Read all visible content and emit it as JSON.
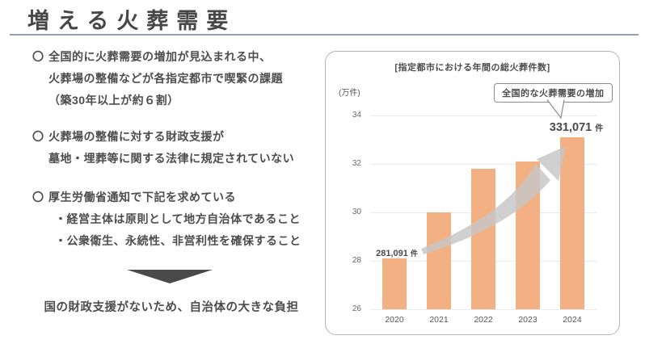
{
  "page": {
    "title": "増える火葬需要"
  },
  "left": {
    "bullets": [
      {
        "marker": "〇",
        "lines": [
          "全国的に火葬需要の増加が見込まれる中、",
          "火葬場の整備などが各指定都市で喫緊の課題",
          "（築30年以上が約６割）"
        ]
      },
      {
        "marker": "〇",
        "lines": [
          "火葬場の整備に対する財政支援が",
          "墓地・埋葬等に関する法律に規定されていない"
        ]
      },
      {
        "marker": "〇",
        "lines": [
          "厚生労働省通知で下記を求めている",
          "・経営主体は原則として地方自治体であること",
          "・公衆衛生、永続性、非営利性を確保すること"
        ]
      }
    ],
    "conclusion": "国の財政支援がないため、自治体の大きな負担"
  },
  "chart_data": {
    "type": "bar",
    "title": "[指定都市における年間の総火葬件数]",
    "unit_label": "(万件)",
    "callout": "全国的な火葬需要の増加",
    "categories": [
      "2020",
      "2021",
      "2022",
      "2023",
      "2024"
    ],
    "values": [
      28.1,
      30.0,
      31.8,
      32.1,
      33.1
    ],
    "yticks": [
      26,
      28,
      30,
      32,
      34
    ],
    "ylim": [
      26,
      34
    ],
    "grid": true,
    "legend": "none",
    "bar_color": "#f3b183",
    "data_labels": [
      {
        "category": "2020",
        "value_text": "281,091",
        "unit": "件",
        "emphasis": false
      },
      {
        "category": "2024",
        "value_text": "331,071",
        "unit": "件",
        "emphasis": true
      }
    ]
  }
}
